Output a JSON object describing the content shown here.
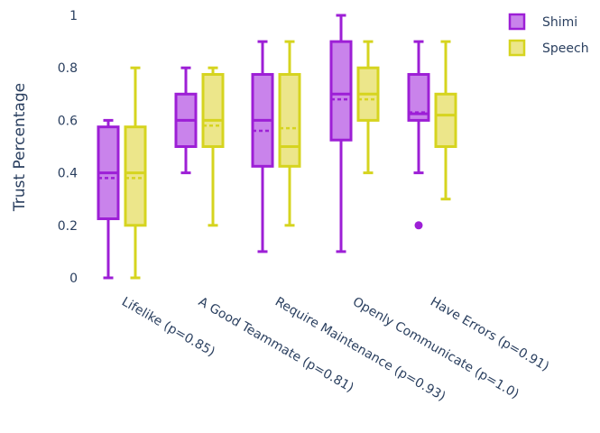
{
  "chart_data": {
    "type": "box",
    "ylabel": "Trust Percentage",
    "ylim": [
      0,
      1
    ],
    "yticks": [
      0,
      0.2,
      0.4,
      0.6,
      0.8,
      1
    ],
    "ytick_labels": [
      "0",
      "0.2",
      "0.4",
      "0.6",
      "0.8",
      "1"
    ],
    "grid": false,
    "legend_position": "top-right",
    "categories": [
      "Lifelike (p=0.85)",
      "A Good Teammate (p=0.81)",
      "Require Maintenance (p=0.93)",
      "Openly Communicate (p=1.0)",
      "Have Errors (p=0.91)"
    ],
    "series": [
      {
        "name": "Shimi",
        "color": "#9d1fd6",
        "fill": "#c983eb",
        "boxes": [
          {
            "min": 0.0,
            "q1": 0.225,
            "median": 0.4,
            "q3": 0.575,
            "max": 0.6,
            "mean": 0.38,
            "outliers": []
          },
          {
            "min": 0.4,
            "q1": 0.5,
            "median": 0.6,
            "q3": 0.7,
            "max": 0.8,
            "mean": 0.6,
            "outliers": []
          },
          {
            "min": 0.1,
            "q1": 0.425,
            "median": 0.6,
            "q3": 0.775,
            "max": 0.9,
            "mean": 0.56,
            "outliers": []
          },
          {
            "min": 0.1,
            "q1": 0.525,
            "median": 0.7,
            "q3": 0.9,
            "max": 1.0,
            "mean": 0.68,
            "outliers": []
          },
          {
            "min": 0.4,
            "q1": 0.6,
            "median": 0.625,
            "q3": 0.775,
            "max": 0.9,
            "mean": 0.63,
            "outliers": [
              0.2
            ]
          }
        ]
      },
      {
        "name": "Speech",
        "color": "#d6d41f",
        "fill": "#ece68a",
        "boxes": [
          {
            "min": 0.0,
            "q1": 0.2,
            "median": 0.4,
            "q3": 0.575,
            "max": 0.8,
            "mean": 0.38,
            "outliers": []
          },
          {
            "min": 0.2,
            "q1": 0.5,
            "median": 0.6,
            "q3": 0.775,
            "max": 0.8,
            "mean": 0.58,
            "outliers": []
          },
          {
            "min": 0.2,
            "q1": 0.425,
            "median": 0.5,
            "q3": 0.775,
            "max": 0.9,
            "mean": 0.57,
            "outliers": []
          },
          {
            "min": 0.4,
            "q1": 0.6,
            "median": 0.7,
            "q3": 0.8,
            "max": 0.9,
            "mean": 0.68,
            "outliers": []
          },
          {
            "min": 0.3,
            "q1": 0.5,
            "median": 0.62,
            "q3": 0.7,
            "max": 0.9,
            "mean": 0.62,
            "outliers": []
          }
        ]
      }
    ]
  }
}
